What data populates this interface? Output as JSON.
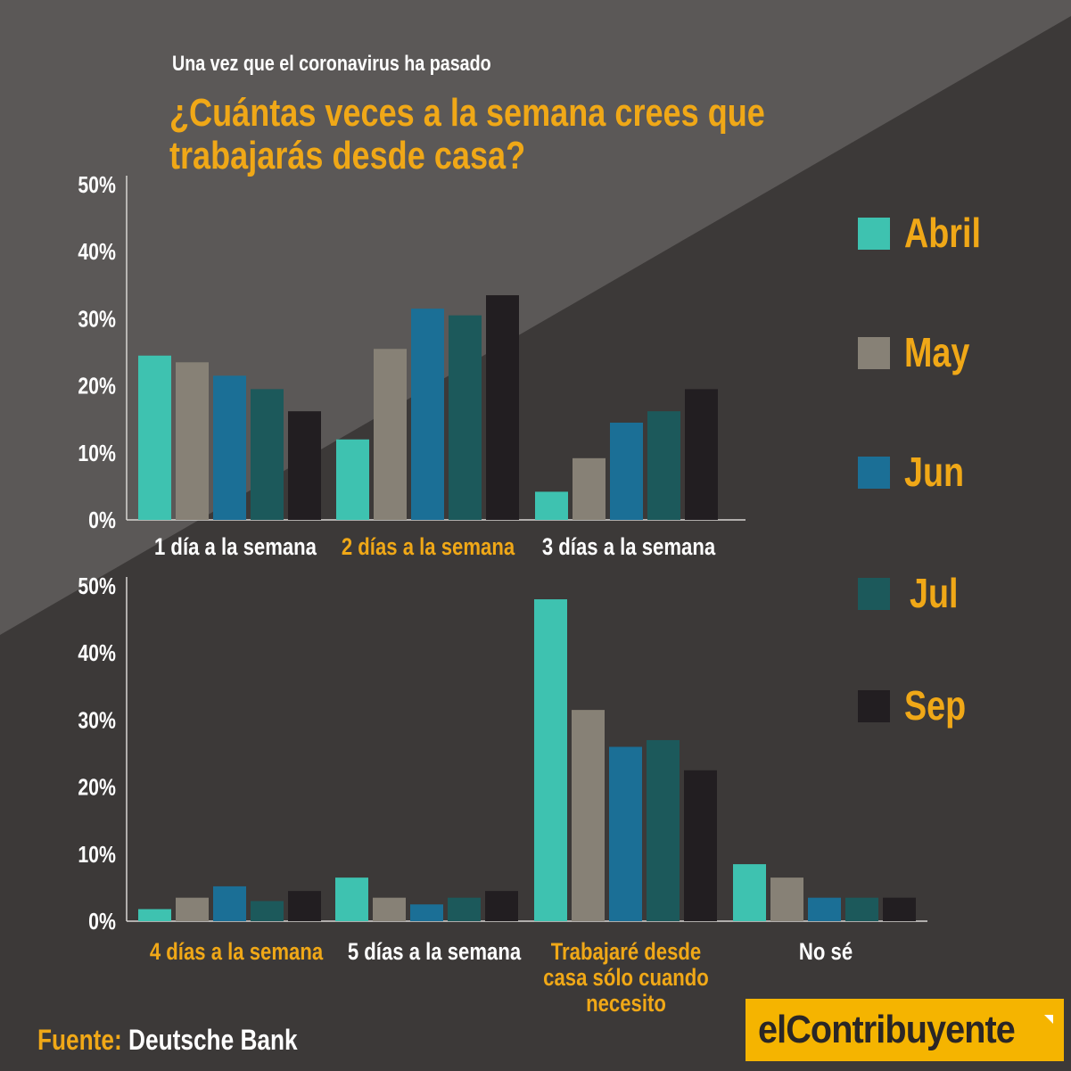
{
  "header": {
    "subtitle": "Una vez que el coronavirus ha pasado",
    "title": "¿Cuántas veces a la semana crees que\ntrabajarás desde casa?"
  },
  "source": {
    "label": "Fuente:",
    "value": "Deutsche Bank"
  },
  "logo": {
    "text": "elContribuyente"
  },
  "colors": {
    "Abril": "#3ec2b0",
    "May": "#878176",
    "Jun": "#1b6f96",
    "Jul": "#1c595b",
    "Sep": "#221e21",
    "accent": "#f0a817",
    "text": "#ffffff"
  },
  "chart_data": [
    {
      "type": "bar",
      "categories": [
        "1 día a la semana",
        "2 días a la semana",
        "3 días a la semana"
      ],
      "category_highlight": [
        false,
        true,
        false
      ],
      "series": [
        {
          "name": "Abril",
          "values": [
            24.5,
            12.0,
            4.2
          ]
        },
        {
          "name": "May",
          "values": [
            23.5,
            25.5,
            9.2
          ]
        },
        {
          "name": "Jun",
          "values": [
            21.5,
            31.5,
            14.5
          ]
        },
        {
          "name": "Jul",
          "values": [
            19.5,
            30.5,
            16.2
          ]
        },
        {
          "name": "Sep",
          "values": [
            16.2,
            33.5,
            19.5
          ]
        }
      ],
      "yticks": [
        "0%",
        "10%",
        "20%",
        "30%",
        "40%",
        "50%"
      ],
      "ylim": [
        0,
        50
      ],
      "legend": "right"
    },
    {
      "type": "bar",
      "categories": [
        "4 días a la semana",
        "5 días a la semana",
        "Trabajaré desde casa sólo cuando necesito",
        "No sé"
      ],
      "category_highlight": [
        true,
        false,
        true,
        false
      ],
      "series": [
        {
          "name": "Abril",
          "values": [
            1.8,
            6.5,
            48.0,
            8.5
          ]
        },
        {
          "name": "May",
          "values": [
            3.5,
            3.5,
            31.5,
            6.5
          ]
        },
        {
          "name": "Jun",
          "values": [
            5.2,
            2.5,
            26.0,
            3.5
          ]
        },
        {
          "name": "Jul",
          "values": [
            3.0,
            3.5,
            27.0,
            3.5
          ]
        },
        {
          "name": "Sep",
          "values": [
            4.5,
            4.5,
            22.5,
            3.5
          ]
        }
      ],
      "yticks": [
        "0%",
        "10%",
        "20%",
        "30%",
        "40%",
        "50%"
      ],
      "ylim": [
        0,
        50
      ],
      "legend": "right"
    }
  ]
}
